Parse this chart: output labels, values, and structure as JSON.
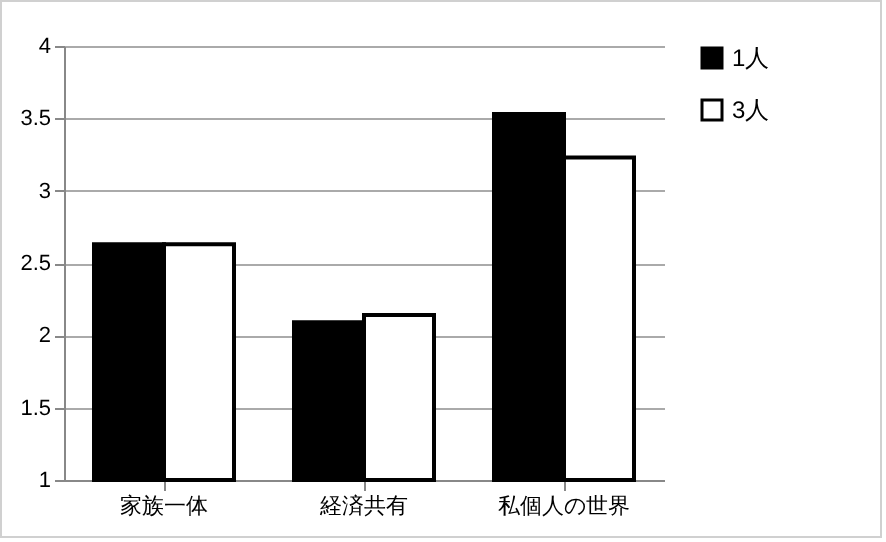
{
  "chart_data": {
    "type": "bar",
    "categories": [
      "家族一体",
      "経済共有",
      "私個人の世界"
    ],
    "series": [
      {
        "name": "1人",
        "color": "#000000",
        "values": [
          2.63,
          2.09,
          3.53
        ]
      },
      {
        "name": "3人",
        "color": "#ffffff",
        "values": [
          2.63,
          2.14,
          3.23
        ]
      }
    ],
    "ylim": [
      1,
      4
    ],
    "yticks": [
      1,
      1.5,
      2,
      2.5,
      3,
      3.5,
      4
    ],
    "grid": "y",
    "legend": "right"
  }
}
